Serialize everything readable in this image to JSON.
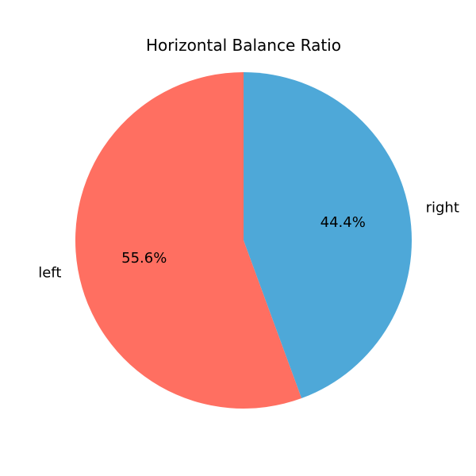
{
  "chart_data": {
    "type": "pie",
    "title": "Horizontal Balance Ratio",
    "start_angle_deg": 90,
    "direction": "clockwise",
    "slices": [
      {
        "label": "right",
        "value": 44.4,
        "pct_label": "44.4%",
        "color": "#4ea8d8"
      },
      {
        "label": "left",
        "value": 55.6,
        "pct_label": "55.6%",
        "color": "#ff6f61"
      }
    ]
  }
}
